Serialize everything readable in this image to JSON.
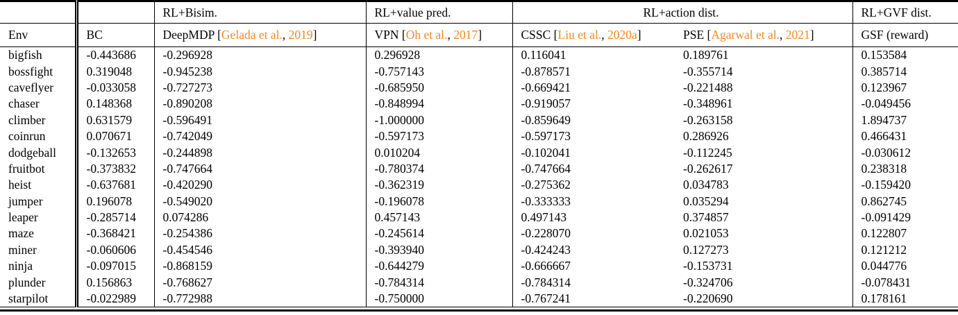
{
  "table": {
    "group_headers": [
      {
        "label": "",
        "span": 1
      },
      {
        "label": "",
        "span": 1
      },
      {
        "label": "RL+Bisim.",
        "span": 1
      },
      {
        "label": "RL+value pred.",
        "span": 1
      },
      {
        "label": "RL+action dist.",
        "span": 2
      },
      {
        "label": "RL+GVF dist.",
        "span": 1
      }
    ],
    "columns": [
      {
        "name": "env",
        "segments": [
          {
            "text": "Env",
            "color": "black"
          }
        ]
      },
      {
        "name": "bc",
        "segments": [
          {
            "text": "BC",
            "color": "black"
          }
        ]
      },
      {
        "name": "deepmdp",
        "segments": [
          {
            "text": "DeepMDP [",
            "color": "black"
          },
          {
            "text": "Gelada et al.",
            "color": "citation"
          },
          {
            "text": ", ",
            "color": "black"
          },
          {
            "text": "2019",
            "color": "citation"
          },
          {
            "text": "]",
            "color": "black"
          }
        ]
      },
      {
        "name": "vpn",
        "segments": [
          {
            "text": "VPN [",
            "color": "black"
          },
          {
            "text": "Oh et al.",
            "color": "citation"
          },
          {
            "text": ", ",
            "color": "black"
          },
          {
            "text": "2017",
            "color": "citation"
          },
          {
            "text": "]",
            "color": "black"
          }
        ]
      },
      {
        "name": "cssc",
        "segments": [
          {
            "text": "CSSC [",
            "color": "black"
          },
          {
            "text": "Liu et al.",
            "color": "citation"
          },
          {
            "text": ", ",
            "color": "black"
          },
          {
            "text": "2020a",
            "color": "citation"
          },
          {
            "text": "]",
            "color": "black"
          }
        ]
      },
      {
        "name": "pse",
        "segments": [
          {
            "text": "PSE [",
            "color": "black"
          },
          {
            "text": "Agarwal et al.",
            "color": "citation"
          },
          {
            "text": ", ",
            "color": "black"
          },
          {
            "text": "2021",
            "color": "citation"
          },
          {
            "text": "]",
            "color": "black"
          }
        ]
      },
      {
        "name": "gsf",
        "segments": [
          {
            "text": "GSF (reward)",
            "color": "black"
          }
        ]
      }
    ],
    "rows": [
      {
        "env": "bigfish",
        "values": [
          "-0.443686",
          "-0.296928",
          "0.296928",
          "0.116041",
          "0.189761",
          "0.153584"
        ]
      },
      {
        "env": "bossfight",
        "values": [
          "0.319048",
          "-0.945238",
          "-0.757143",
          "-0.878571",
          "-0.355714",
          "0.385714"
        ]
      },
      {
        "env": "caveflyer",
        "values": [
          "-0.033058",
          "-0.727273",
          "-0.685950",
          "-0.669421",
          "-0.221488",
          "0.123967"
        ]
      },
      {
        "env": "chaser",
        "values": [
          "0.148368",
          "-0.890208",
          "-0.848994",
          "-0.919057",
          "-0.348961",
          "-0.049456"
        ]
      },
      {
        "env": "climber",
        "values": [
          "0.631579",
          "-0.596491",
          "-1.000000",
          "-0.859649",
          "-0.263158",
          "1.894737"
        ]
      },
      {
        "env": "coinrun",
        "values": [
          "0.070671",
          "-0.742049",
          "-0.597173",
          "-0.597173",
          "0.286926",
          "0.466431"
        ]
      },
      {
        "env": "dodgeball",
        "values": [
          "-0.132653",
          "-0.244898",
          "0.010204",
          "-0.102041",
          "-0.112245",
          "-0.030612"
        ]
      },
      {
        "env": "fruitbot",
        "values": [
          "-0.373832",
          "-0.747664",
          "-0.780374",
          "-0.747664",
          "-0.262617",
          "0.238318"
        ]
      },
      {
        "env": "heist",
        "values": [
          "-0.637681",
          "-0.420290",
          "-0.362319",
          "-0.275362",
          "0.034783",
          "-0.159420"
        ]
      },
      {
        "env": "jumper",
        "values": [
          "0.196078",
          "-0.549020",
          "-0.196078",
          "-0.333333",
          "0.035294",
          "0.862745"
        ]
      },
      {
        "env": "leaper",
        "values": [
          "-0.285714",
          "0.074286",
          "0.457143",
          "0.497143",
          "0.374857",
          "-0.091429"
        ]
      },
      {
        "env": "maze",
        "values": [
          "-0.368421",
          "-0.254386",
          "-0.245614",
          "-0.228070",
          "0.021053",
          "0.122807"
        ]
      },
      {
        "env": "miner",
        "values": [
          "-0.060606",
          "-0.454546",
          "-0.393940",
          "-0.424243",
          "0.127273",
          "0.121212"
        ]
      },
      {
        "env": "ninja",
        "values": [
          "-0.097015",
          "-0.868159",
          "-0.644279",
          "-0.666667",
          "-0.153731",
          "0.044776"
        ]
      },
      {
        "env": "plunder",
        "values": [
          "0.156863",
          "-0.768627",
          "-0.784314",
          "-0.784314",
          "-0.324706",
          "-0.078431"
        ]
      },
      {
        "env": "starpilot",
        "values": [
          "-0.022989",
          "-0.772988",
          "-0.750000",
          "-0.767241",
          "-0.220690",
          "0.178161"
        ]
      }
    ]
  },
  "colors": {
    "citation": "#F18A21",
    "text": "#000000",
    "background": "#FFFFFF"
  }
}
